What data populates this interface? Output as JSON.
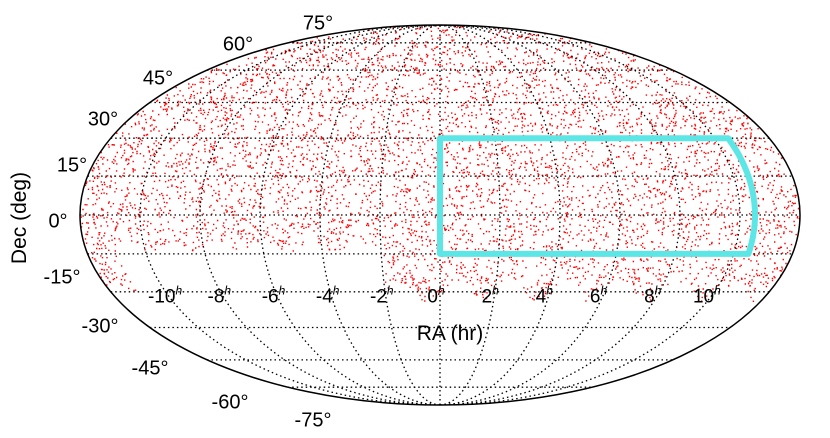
{
  "chart_data": {
    "type": "scatter",
    "projection": "mollweide",
    "title": "",
    "xlabel": "RA (hr)",
    "ylabel": "Dec (deg)",
    "grid": true,
    "colors": {
      "points": "#ff0000",
      "footprint": "#5ce6e6",
      "grid": "#000000"
    },
    "ra_ticks": [
      {
        "value": -10,
        "label": "-10",
        "unit": "h"
      },
      {
        "value": -8,
        "label": "-8",
        "unit": "h"
      },
      {
        "value": -6,
        "label": "-6",
        "unit": "h"
      },
      {
        "value": -4,
        "label": "-4",
        "unit": "h"
      },
      {
        "value": -2,
        "label": "-2",
        "unit": "h"
      },
      {
        "value": 0,
        "label": "0",
        "unit": "h"
      },
      {
        "value": 2,
        "label": "2",
        "unit": "h"
      },
      {
        "value": 4,
        "label": "4",
        "unit": "h"
      },
      {
        "value": 6,
        "label": "6",
        "unit": "h"
      },
      {
        "value": 8,
        "label": "8",
        "unit": "h"
      },
      {
        "value": 10,
        "label": "10",
        "unit": "h"
      }
    ],
    "dec_ticks": [
      {
        "value": 75,
        "label": "75°"
      },
      {
        "value": 60,
        "label": "60°"
      },
      {
        "value": 45,
        "label": "45°"
      },
      {
        "value": 30,
        "label": "30°"
      },
      {
        "value": 15,
        "label": "15°"
      },
      {
        "value": 0,
        "label": "0°"
      },
      {
        "value": -15,
        "label": "-15°"
      },
      {
        "value": -30,
        "label": "-30°"
      },
      {
        "value": -45,
        "label": "-45°"
      },
      {
        "value": -60,
        "label": "-60°"
      },
      {
        "value": -75,
        "label": "-75°"
      }
    ],
    "footprint": {
      "ra_range_hr": [
        0,
        10.5
      ],
      "dec_range_deg": [
        -15,
        30
      ]
    },
    "point_coverage": {
      "description_min_dec_deg": -30,
      "gap_dec_below_deg_for_ra_hr_range": [
        -11,
        -2
      ],
      "gap_dec_below_deg_value": -12
    }
  }
}
